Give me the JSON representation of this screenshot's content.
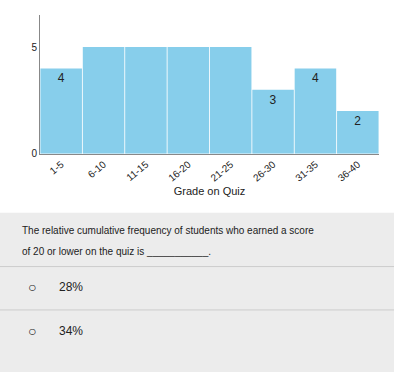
{
  "chart_data": {
    "type": "bar",
    "categories": [
      "1-5",
      "6-10",
      "11-15",
      "16-20",
      "21-25",
      "26-30",
      "31-35",
      "36-40"
    ],
    "values": [
      4,
      5,
      5,
      5,
      5,
      3,
      4,
      2
    ],
    "data_labels": true,
    "value_labels": [
      "4",
      null,
      null,
      null,
      null,
      "3",
      "4",
      "2"
    ],
    "color": "#87CEEB",
    "xlabel": "Grade on Quiz",
    "ylim": [
      0,
      6.5
    ],
    "yticks": [
      0,
      5
    ],
    "grid": false,
    "annotations": [
      "The relative cumulative frequency of students who earned a score",
      "of 20 or lower on the quiz is ___________.",
      "○",
      "28%",
      "○",
      "34%"
    ]
  }
}
